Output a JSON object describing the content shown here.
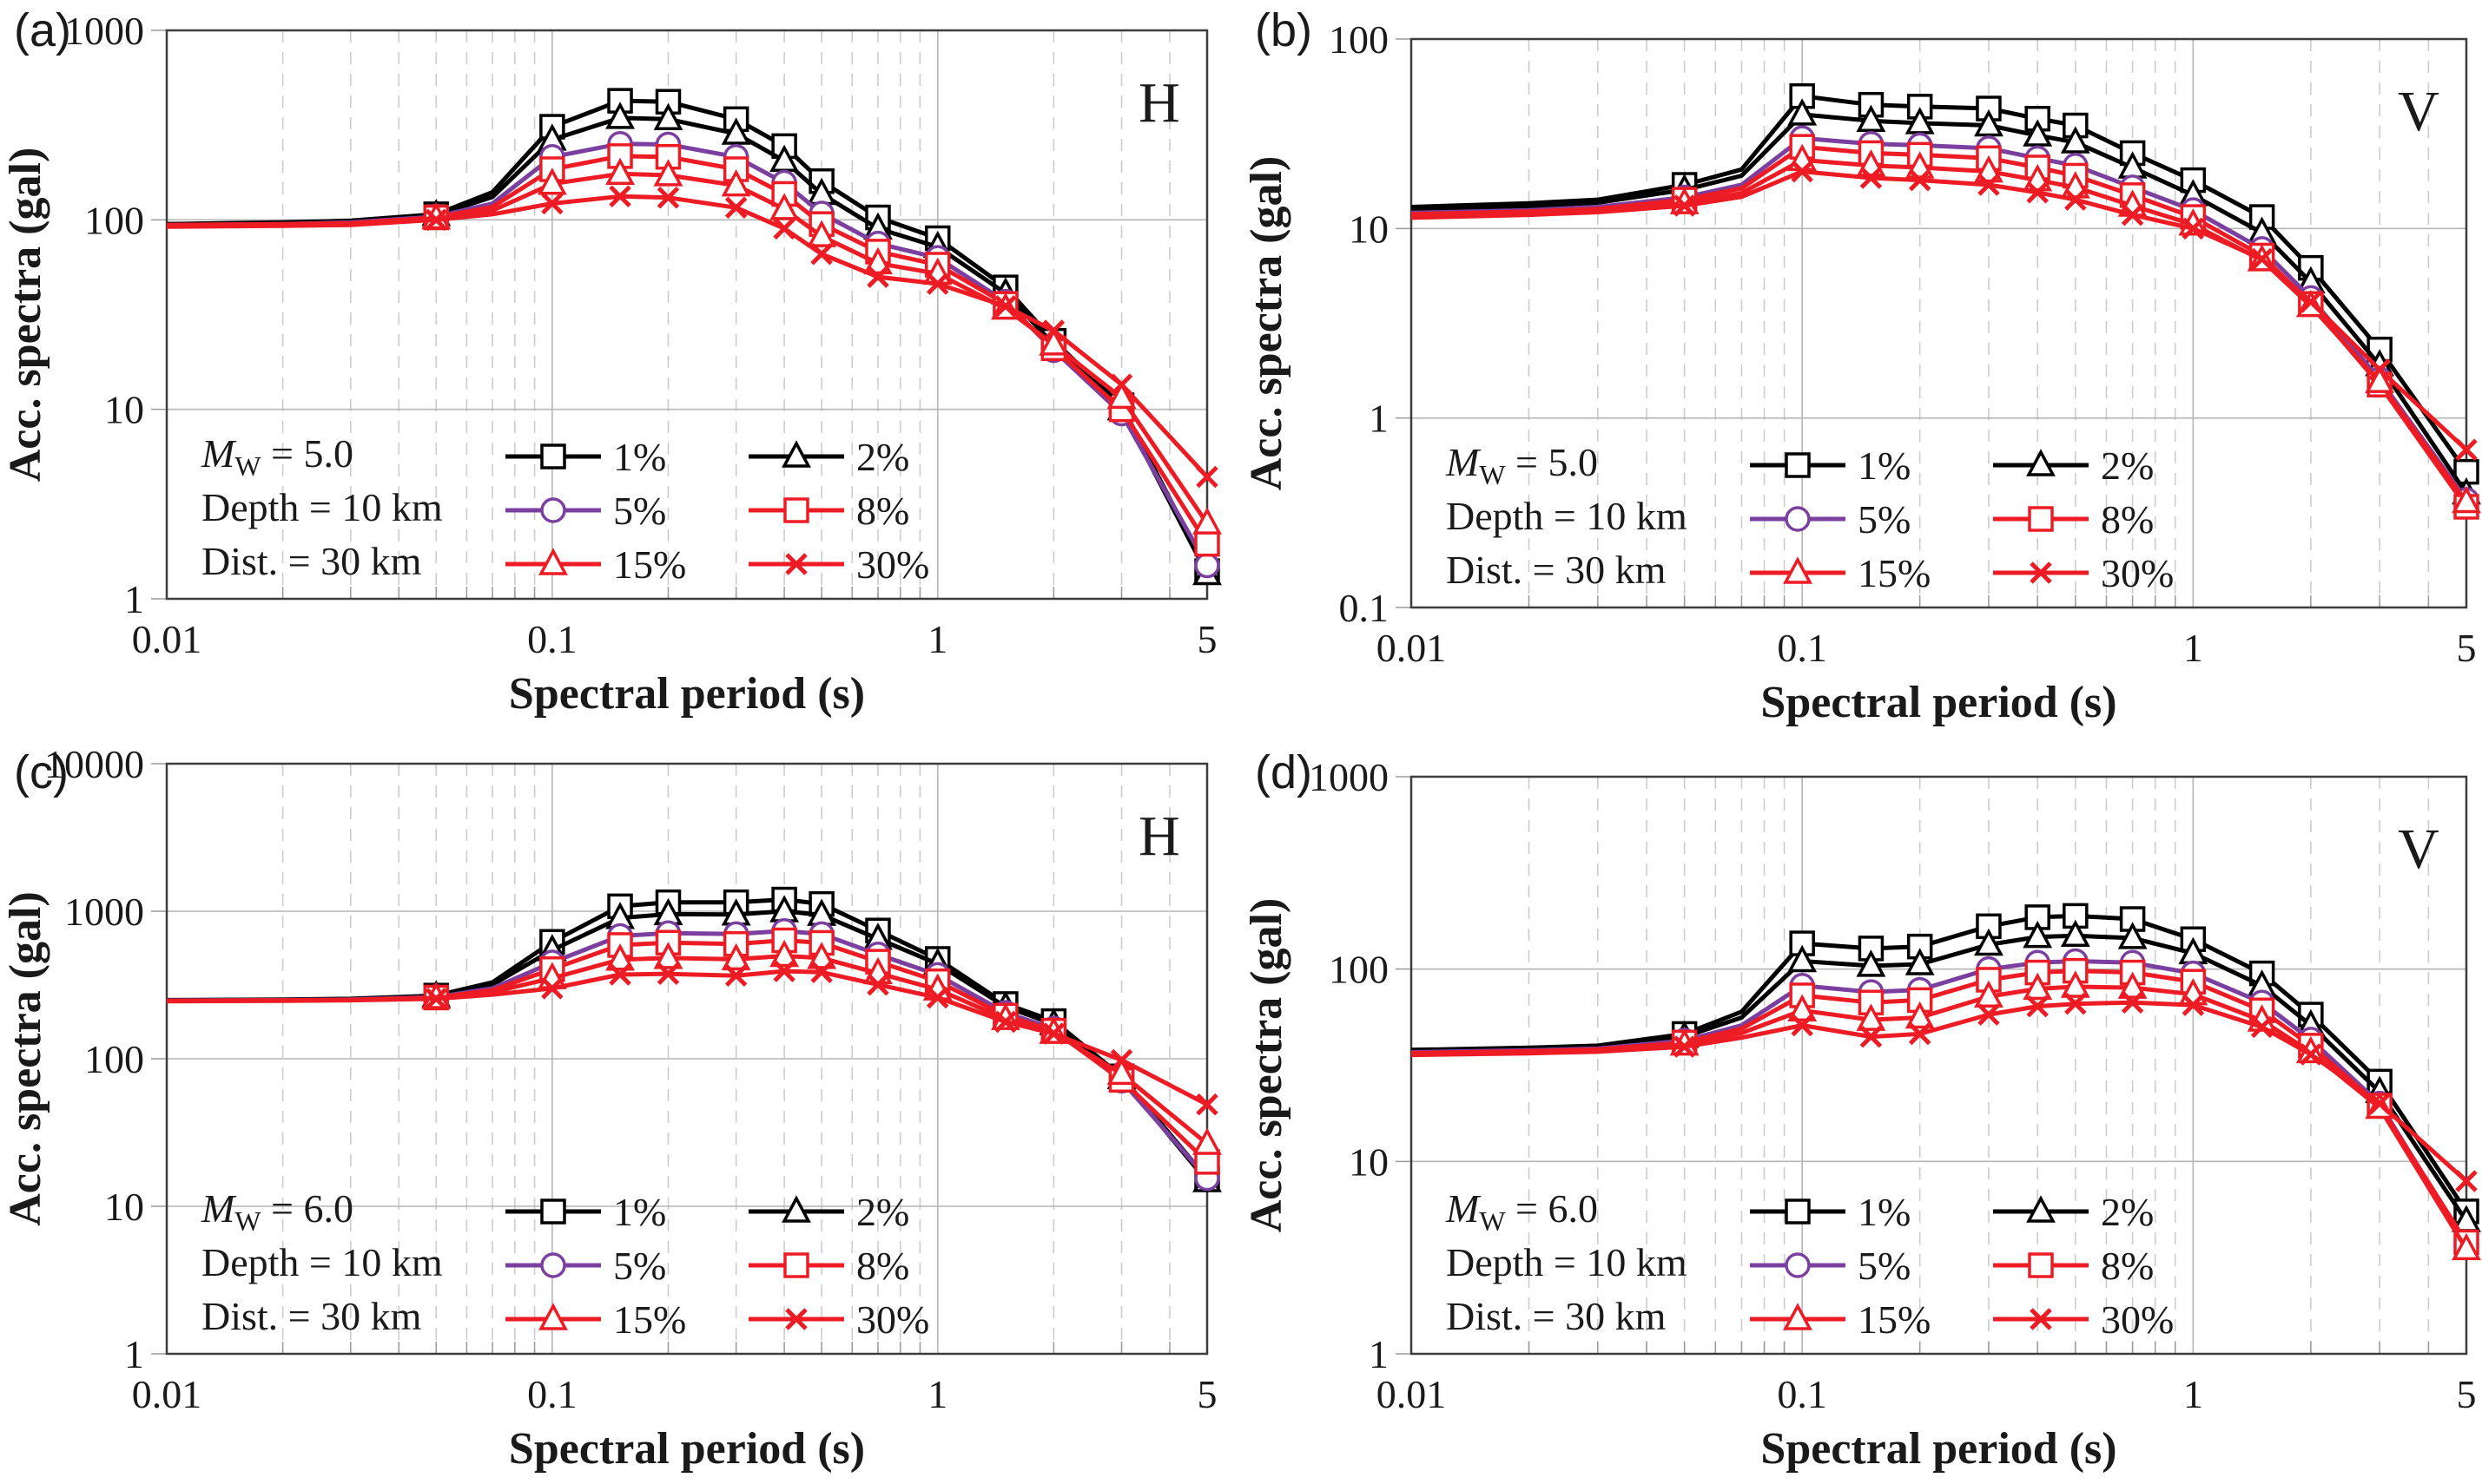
{
  "figure": {
    "background": "#ffffff",
    "x_axis_title": "Spectral period (s)",
    "y_axis_title": "Acc. spectra (gal)"
  },
  "chart_data": [
    {
      "id": "a",
      "type": "line",
      "panel_label": "(a)",
      "corner_label": "H",
      "x_label": "Spectral period (s)",
      "y_label": "Acc. spectra (gal)",
      "x_scale": "log",
      "y_scale": "log",
      "x_range": [
        0.01,
        5
      ],
      "y_range": [
        1,
        1000
      ],
      "x_ticks": [
        0.01,
        0.1,
        1,
        5
      ],
      "x_tick_labels": [
        "0.01",
        "0.1",
        "1",
        "5"
      ],
      "y_ticks": [
        1000,
        100,
        10,
        1
      ],
      "y_tick_labels": [
        "1000",
        "100",
        "10",
        "1"
      ],
      "grid": true,
      "legend_position": "inside-bottom-left",
      "annotation": {
        "m_symbol": "M",
        "m_subscript": "W",
        "m_value": "= 5.0",
        "depth": "Depth = 10 km",
        "distance": "Dist. = 30 km"
      },
      "x": [
        0.01,
        0.02,
        0.03,
        0.05,
        0.07,
        0.1,
        0.15,
        0.2,
        0.3,
        0.4,
        0.5,
        0.7,
        1,
        1.5,
        2,
        3,
        5
      ],
      "series": [
        {
          "name": "1%",
          "color": "#000000",
          "marker": "square",
          "values": [
            95,
            97,
            99,
            107,
            140,
            310,
            425,
            420,
            340,
            245,
            160,
            103,
            80,
            44,
            23,
            10.5,
            1.4
          ]
        },
        {
          "name": "2%",
          "color": "#000000",
          "marker": "triangle",
          "values": [
            95,
            96,
            98,
            106,
            132,
            265,
            345,
            340,
            285,
            205,
            137,
            90,
            72,
            41,
            22,
            10,
            1.35
          ]
        },
        {
          "name": "5%",
          "color": "#7B3FA0",
          "marker": "circle",
          "values": [
            94,
            95,
            97,
            104,
            122,
            215,
            252,
            250,
            215,
            157,
            108,
            75,
            63,
            37,
            20.5,
            9.5,
            1.5
          ]
        },
        {
          "name": "8%",
          "color": "#ED1C24",
          "marker": "square",
          "values": [
            94,
            95,
            96,
            103,
            117,
            185,
            217,
            215,
            185,
            137,
            95,
            68,
            58,
            36,
            21,
            10,
            1.95
          ]
        },
        {
          "name": "15%",
          "color": "#ED1C24",
          "marker": "triangle",
          "values": [
            93,
            94,
            95,
            102,
            112,
            155,
            175,
            172,
            152,
            114,
            82,
            59,
            52,
            34,
            22,
            11.5,
            2.5
          ]
        },
        {
          "name": "30%",
          "color": "#ED1C24",
          "marker": "x",
          "values": [
            92,
            93,
            94,
            100,
            107,
            122,
            133,
            131,
            116,
            90,
            66,
            50,
            46,
            35,
            26,
            13.5,
            4.4
          ]
        }
      ]
    },
    {
      "id": "b",
      "type": "line",
      "panel_label": "(b)",
      "corner_label": "V",
      "x_label": "Spectral period (s)",
      "y_label": "Acc. spectra (gal)",
      "x_scale": "log",
      "y_scale": "log",
      "x_range": [
        0.01,
        5
      ],
      "y_range": [
        0.1,
        100
      ],
      "x_ticks": [
        0.01,
        0.1,
        1,
        5
      ],
      "x_tick_labels": [
        "0.01",
        "0.1",
        "1",
        "5"
      ],
      "y_ticks": [
        100,
        10,
        1,
        0.1
      ],
      "y_tick_labels": [
        "100",
        "10",
        "1",
        "0.1"
      ],
      "grid": true,
      "legend_position": "inside-bottom-left",
      "annotation": {
        "m_symbol": "M",
        "m_subscript": "W",
        "m_value": "= 5.0",
        "depth": "Depth = 10 km",
        "distance": "Dist. = 30 km"
      },
      "x": [
        0.01,
        0.02,
        0.03,
        0.05,
        0.07,
        0.1,
        0.15,
        0.2,
        0.3,
        0.4,
        0.5,
        0.7,
        1,
        1.5,
        2,
        3,
        5
      ],
      "series": [
        {
          "name": "1%",
          "color": "#000000",
          "marker": "square",
          "values": [
            13,
            13.6,
            14.2,
            17,
            20.5,
            50,
            45,
            44,
            43,
            38,
            35,
            25,
            18,
            11.5,
            6.2,
            2.3,
            0.52
          ]
        },
        {
          "name": "2%",
          "color": "#000000",
          "marker": "triangle",
          "values": [
            12.6,
            13.1,
            13.7,
            16,
            19,
            40,
            37,
            36,
            35,
            31,
            28.5,
            21,
            15,
            9.5,
            5.2,
            1.9,
            0.4
          ]
        },
        {
          "name": "5%",
          "color": "#7B3FA0",
          "marker": "circle",
          "values": [
            12.1,
            12.5,
            13,
            14.6,
            17,
            30,
            28,
            27.5,
            26.5,
            23.5,
            21.5,
            16.5,
            12.5,
            7.8,
            4.3,
            1.6,
            0.37
          ]
        },
        {
          "name": "8%",
          "color": "#ED1C24",
          "marker": "square",
          "values": [
            11.9,
            12.3,
            12.7,
            14.2,
            16.3,
            27,
            25,
            24.5,
            23.5,
            21,
            19,
            15,
            11.5,
            7.2,
            4,
            1.5,
            0.34
          ]
        },
        {
          "name": "15%",
          "color": "#ED1C24",
          "marker": "triangle",
          "values": [
            11.6,
            12,
            12.4,
            13.6,
            15.4,
            23,
            21.5,
            21,
            20,
            18,
            16.5,
            13.2,
            10.5,
            6.8,
            3.9,
            1.55,
            0.36
          ]
        },
        {
          "name": "30%",
          "color": "#ED1C24",
          "marker": "x",
          "values": [
            11.4,
            11.8,
            12.2,
            13.2,
            14.7,
            20,
            18.5,
            18,
            17,
            15.5,
            14.2,
            11.8,
            10,
            6.9,
            4.1,
            1.8,
            0.68
          ]
        }
      ]
    },
    {
      "id": "c",
      "type": "line",
      "panel_label": "(c)",
      "corner_label": "H",
      "x_label": "Spectral period (s)",
      "y_label": "Acc. spectra (gal)",
      "x_scale": "log",
      "y_scale": "log",
      "x_range": [
        0.01,
        5
      ],
      "y_range": [
        1,
        10000
      ],
      "x_ticks": [
        0.01,
        0.1,
        1,
        5
      ],
      "x_tick_labels": [
        "0.01",
        "0.1",
        "1",
        "5"
      ],
      "y_ticks": [
        10000,
        1000,
        100,
        10,
        1
      ],
      "y_tick_labels": [
        "10000",
        "1000",
        "100",
        "10",
        "1"
      ],
      "grid": true,
      "legend_position": "inside-bottom-left",
      "annotation": {
        "m_symbol": "M",
        "m_subscript": "W",
        "m_value": "= 6.0",
        "depth": "Depth = 10 km",
        "distance": "Dist. = 30 km"
      },
      "x": [
        0.01,
        0.02,
        0.03,
        0.05,
        0.07,
        0.1,
        0.15,
        0.2,
        0.3,
        0.4,
        0.5,
        0.7,
        1,
        1.5,
        2,
        3,
        5
      ],
      "series": [
        {
          "name": "1%",
          "color": "#000000",
          "marker": "square",
          "values": [
            250,
            252,
            255,
            268,
            330,
            620,
            1080,
            1150,
            1150,
            1200,
            1120,
            740,
            475,
            235,
            180,
            76,
            15.4
          ]
        },
        {
          "name": "2%",
          "color": "#000000",
          "marker": "triangle",
          "values": [
            249,
            251,
            254,
            265,
            318,
            545,
            900,
            955,
            950,
            1000,
            945,
            650,
            440,
            225,
            172,
            74,
            14.8
          ]
        },
        {
          "name": "5%",
          "color": "#7B3FA0",
          "marker": "circle",
          "values": [
            248,
            250,
            252,
            262,
            300,
            450,
            680,
            710,
            700,
            735,
            700,
            510,
            370,
            205,
            160,
            71,
            15.5
          ]
        },
        {
          "name": "8%",
          "color": "#ED1C24",
          "marker": "square",
          "values": [
            247,
            249,
            251,
            260,
            292,
            405,
            590,
            612,
            600,
            635,
            610,
            455,
            335,
            196,
            155,
            72,
            20
          ]
        },
        {
          "name": "15%",
          "color": "#ED1C24",
          "marker": "triangle",
          "values": [
            246,
            248,
            250,
            258,
            283,
            352,
            470,
            482,
            472,
            498,
            482,
            380,
            295,
            186,
            150,
            79,
            26.5
          ]
        },
        {
          "name": "30%",
          "color": "#ED1C24",
          "marker": "x",
          "values": [
            245,
            247,
            249,
            255,
            272,
            300,
            372,
            376,
            366,
            392,
            386,
            318,
            260,
            178,
            148,
            98,
            49
          ]
        }
      ]
    },
    {
      "id": "d",
      "type": "line",
      "panel_label": "(d)",
      "corner_label": "V",
      "x_label": "Spectral period (s)",
      "y_label": "Acc. spectra (gal)",
      "x_scale": "log",
      "y_scale": "log",
      "x_range": [
        0.01,
        5
      ],
      "y_range": [
        1,
        1000
      ],
      "x_ticks": [
        0.01,
        0.1,
        1,
        5
      ],
      "x_tick_labels": [
        "0.01",
        "0.1",
        "1",
        "5"
      ],
      "y_ticks": [
        1000,
        100,
        10,
        1
      ],
      "y_tick_labels": [
        "1000",
        "100",
        "10",
        "1"
      ],
      "grid": true,
      "legend_position": "inside-bottom-left",
      "annotation": {
        "m_symbol": "M",
        "m_subscript": "W",
        "m_value": "= 6.0",
        "depth": "Depth = 10 km",
        "distance": "Dist. = 30 km"
      },
      "x": [
        0.01,
        0.02,
        0.03,
        0.05,
        0.07,
        0.1,
        0.15,
        0.2,
        0.3,
        0.4,
        0.5,
        0.7,
        1,
        1.5,
        2,
        3,
        5
      ],
      "series": [
        {
          "name": "1%",
          "color": "#000000",
          "marker": "square",
          "values": [
            38,
            39,
            40,
            46,
            60,
            136,
            128,
            131,
            167,
            186,
            189,
            182,
            143,
            95,
            58,
            26,
            5.5
          ]
        },
        {
          "name": "2%",
          "color": "#000000",
          "marker": "triangle",
          "values": [
            37.5,
            38.5,
            39.5,
            44.5,
            56,
            110,
            104,
            106,
            134,
            147,
            149,
            145,
            121,
            82,
            51,
            23,
            4.9
          ]
        },
        {
          "name": "5%",
          "color": "#7B3FA0",
          "marker": "circle",
          "values": [
            37,
            37.8,
            38.6,
            42.5,
            51,
            82,
            76,
            78,
            100,
            108,
            110,
            108,
            95,
            67,
            43,
            20,
            3.7
          ]
        },
        {
          "name": "8%",
          "color": "#ED1C24",
          "marker": "square",
          "values": [
            36.6,
            37.4,
            38.2,
            41.5,
            49,
            73,
            67,
            69,
            88,
            96,
            98,
            96,
            86,
            61,
            40,
            19.5,
            3.8
          ]
        },
        {
          "name": "15%",
          "color": "#ED1C24",
          "marker": "triangle",
          "values": [
            36.2,
            37,
            37.8,
            40.5,
            46.5,
            61,
            54.5,
            56,
            72,
            79,
            81,
            80,
            74,
            54,
            37,
            19,
            3.5
          ]
        },
        {
          "name": "30%",
          "color": "#ED1C24",
          "marker": "x",
          "values": [
            35.8,
            36.5,
            37.2,
            39.5,
            44,
            51,
            44.5,
            46,
            58,
            64,
            66,
            67,
            65,
            50,
            36,
            20,
            7.9
          ]
        }
      ]
    }
  ]
}
